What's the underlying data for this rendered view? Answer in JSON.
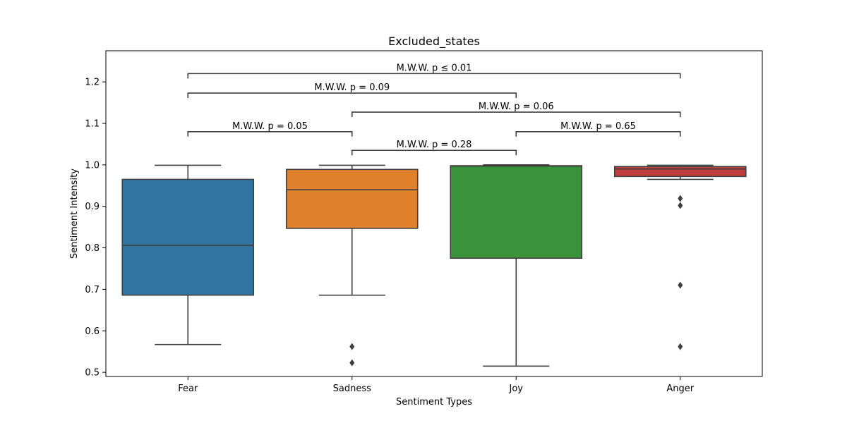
{
  "chart_data": {
    "type": "box",
    "title": "Excluded_states",
    "xlabel": "Sentiment Types",
    "ylabel": "Sentiment Intensity",
    "ylim": [
      0.49,
      1.275
    ],
    "yticks": [
      0.5,
      0.6,
      0.7,
      0.8,
      0.9,
      1.0,
      1.1,
      1.2
    ],
    "ytick_labels": [
      "0.5",
      "0.6",
      "0.7",
      "0.8",
      "0.9",
      "1.0",
      "1.1",
      "1.2"
    ],
    "grid": false,
    "categories": [
      "Fear",
      "Sadness",
      "Joy",
      "Anger"
    ],
    "boxes": [
      {
        "category": "Fear",
        "color": "#3274a1",
        "whisker_low": 0.567,
        "q1": 0.686,
        "median": 0.806,
        "q3": 0.965,
        "whisker_high": 0.999,
        "outliers": []
      },
      {
        "category": "Sadness",
        "color": "#e1812c",
        "whisker_low": 0.686,
        "q1": 0.847,
        "median": 0.94,
        "q3": 0.989,
        "whisker_high": 0.999,
        "outliers": [
          0.562,
          0.523
        ]
      },
      {
        "category": "Joy",
        "color": "#3a923a",
        "whisker_low": 0.515,
        "q1": 0.775,
        "median": 0.997,
        "q3": 0.998,
        "whisker_high": 1.0,
        "outliers": []
      },
      {
        "category": "Anger",
        "color": "#c03d3e",
        "whisker_low": 0.965,
        "q1": 0.972,
        "median": 0.99,
        "q3": 0.996,
        "whisker_high": 0.999,
        "outliers": [
          0.919,
          0.902,
          0.71,
          0.562
        ]
      }
    ],
    "annotations": [
      {
        "from": 0,
        "to": 1,
        "y": 1.08,
        "label": "M.W.W. p = 0.05"
      },
      {
        "from": 1,
        "to": 2,
        "y": 1.035,
        "label": "M.W.W. p = 0.28"
      },
      {
        "from": 2,
        "to": 3,
        "y": 1.08,
        "label": "M.W.W. p = 0.65"
      },
      {
        "from": 1,
        "to": 3,
        "y": 1.127,
        "label": "M.W.W. p = 0.06"
      },
      {
        "from": 0,
        "to": 2,
        "y": 1.173,
        "label": "M.W.W. p = 0.09"
      },
      {
        "from": 0,
        "to": 3,
        "y": 1.22,
        "label": "M.W.W. p ≤ 0.01"
      }
    ]
  }
}
